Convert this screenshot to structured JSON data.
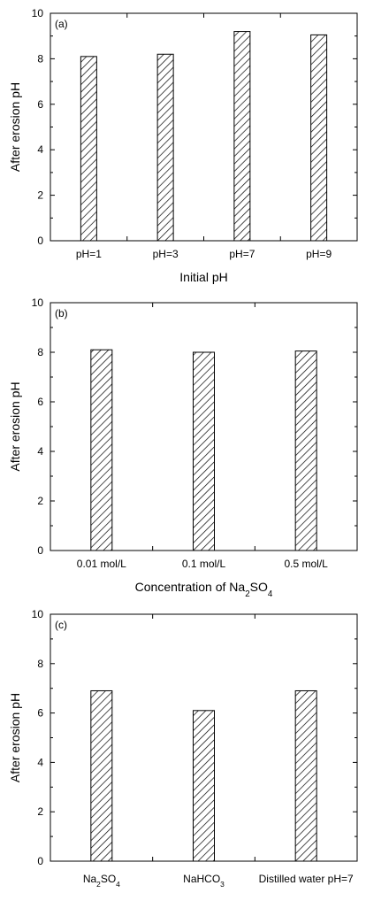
{
  "chart_data": [
    {
      "type": "bar",
      "panel_label": "(a)",
      "categories": [
        "pH=1",
        "pH=3",
        "pH=7",
        "pH=9"
      ],
      "values": [
        8.1,
        8.2,
        9.2,
        9.05
      ],
      "xlabel": "Initial pH",
      "xlabel_sub": "",
      "xlabel_end": "",
      "ylabel": "After erosion pH",
      "ylim": [
        0,
        10
      ],
      "yticks": [
        "0",
        "2",
        "4",
        "6",
        "8",
        "10"
      ],
      "bar_fill": "hatched diagonal",
      "grid": false
    },
    {
      "type": "bar",
      "panel_label": "(b)",
      "categories": [
        "0.01 mol/L",
        "0.1 mol/L",
        "0.5 mol/L"
      ],
      "values": [
        8.1,
        8.0,
        8.05
      ],
      "xlabel": "Concentration of Na",
      "xlabel_sub": "2",
      "xlabel_end": "SO",
      "xlabel_end_sub": "4",
      "ylabel": "After erosion pH",
      "ylim": [
        0,
        10
      ],
      "yticks": [
        "0",
        "2",
        "4",
        "6",
        "8",
        "10"
      ],
      "bar_fill": "hatched diagonal",
      "grid": false
    },
    {
      "type": "bar",
      "panel_label": "(c)",
      "categories": [
        "Na2SO4",
        "NaHCO3",
        "Distilled water pH=7"
      ],
      "values": [
        6.9,
        6.1,
        6.9
      ],
      "xlabel": "",
      "ylabel": "After erosion pH",
      "ylim": [
        0,
        10
      ],
      "yticks": [
        "0",
        "2",
        "4",
        "6",
        "8",
        "10"
      ],
      "bar_fill": "hatched diagonal",
      "grid": false
    }
  ]
}
